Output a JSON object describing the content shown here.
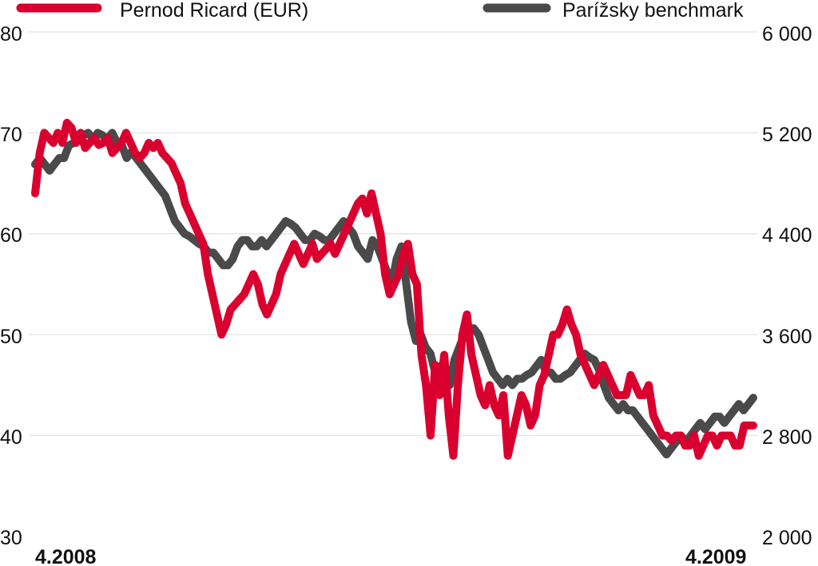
{
  "chart_data": {
    "type": "line",
    "title": "",
    "xlabel": "",
    "ylabel": "",
    "x_tick_labels": [
      "4.2008",
      "4.2009"
    ],
    "grid": true,
    "legend": "top",
    "y_left": {
      "range": [
        30,
        80
      ],
      "ticks": [
        "30",
        "40",
        "50",
        "60",
        "70",
        "80"
      ]
    },
    "y_right": {
      "range": [
        2000,
        6000
      ],
      "ticks": [
        "2 000",
        "2 800",
        "3 600",
        "4 400",
        "5 200",
        "6 000"
      ]
    },
    "series": [
      {
        "name": "Pernod Ricard (EUR)",
        "axis": "left",
        "color": "#d9002f",
        "values": [
          64,
          68,
          70,
          69.5,
          69,
          70,
          69,
          71,
          70.5,
          69,
          70,
          68.5,
          69,
          69.5,
          68.8,
          69,
          69.5,
          68,
          68.5,
          69,
          70,
          69,
          68,
          67.5,
          68,
          69,
          68.5,
          69,
          68,
          67.5,
          67,
          66,
          65,
          63,
          62,
          61,
          60,
          59,
          56,
          54,
          52,
          50,
          51,
          52.5,
          53,
          53.5,
          54,
          55,
          56,
          55,
          53,
          52,
          53,
          54,
          56,
          57,
          58,
          59,
          58,
          57,
          58,
          59,
          57.5,
          58,
          58.5,
          59,
          58,
          59,
          60,
          61,
          62,
          63,
          63.5,
          62,
          64,
          62,
          60,
          56,
          54,
          55,
          56,
          58,
          59,
          56,
          55,
          48,
          45,
          40,
          47,
          44,
          48,
          42,
          38,
          45,
          50,
          52,
          48,
          46,
          44,
          43,
          45,
          43,
          42,
          44,
          38,
          40,
          42,
          44,
          43,
          41,
          42,
          45,
          46,
          48,
          50,
          50,
          51,
          52.5,
          51,
          50,
          48,
          47,
          46,
          45,
          46,
          47,
          46,
          45,
          44,
          44,
          44,
          46,
          45,
          44,
          44,
          45,
          42,
          41,
          40,
          40,
          39.5,
          40,
          40,
          39,
          39,
          40,
          38,
          39,
          40,
          40,
          39,
          40,
          40,
          40,
          39,
          39,
          41,
          41,
          41
        ]
      },
      {
        "name": "Parížsky benchmark",
        "axis": "right",
        "color": "#4a4a4a",
        "values": [
          4950,
          5000,
          4950,
          4900,
          4950,
          5000,
          5000,
          5100,
          5120,
          5150,
          5180,
          5200,
          5150,
          5200,
          5180,
          5150,
          5200,
          5120,
          5100,
          5000,
          5050,
          5000,
          4950,
          4900,
          4850,
          4800,
          4750,
          4700,
          4600,
          4500,
          4450,
          4400,
          4380,
          4350,
          4320,
          4300,
          4250,
          4250,
          4200,
          4150,
          4150,
          4200,
          4300,
          4350,
          4350,
          4300,
          4300,
          4350,
          4300,
          4350,
          4400,
          4450,
          4500,
          4480,
          4450,
          4400,
          4350,
          4350,
          4400,
          4380,
          4350,
          4350,
          4400,
          4450,
          4500,
          4450,
          4400,
          4300,
          4250,
          4200,
          4350,
          4300,
          4200,
          4100,
          4000,
          4200,
          4300,
          4000,
          3700,
          3550,
          3600,
          3500,
          3450,
          3300,
          3350,
          3300,
          3200,
          3400,
          3500,
          3600,
          3650,
          3650,
          3600,
          3500,
          3400,
          3300,
          3250,
          3200,
          3250,
          3200,
          3250,
          3250,
          3280,
          3300,
          3350,
          3400,
          3300,
          3300,
          3250,
          3250,
          3280,
          3300,
          3350,
          3400,
          3450,
          3420,
          3400,
          3320,
          3200,
          3100,
          3050,
          3000,
          3050,
          3000,
          3000,
          2950,
          2900,
          2850,
          2800,
          2750,
          2700,
          2650,
          2700,
          2750,
          2800,
          2750,
          2800,
          2850,
          2900,
          2850,
          2900,
          2950,
          2950,
          2900,
          2950,
          3000,
          3050,
          3000,
          3050,
          3100
        ]
      }
    ]
  }
}
